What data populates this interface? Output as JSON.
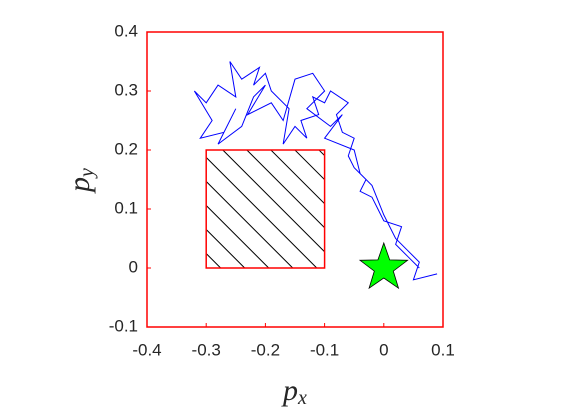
{
  "chart_data": {
    "type": "line",
    "xlabel": {
      "text": "p",
      "subscript": "x"
    },
    "ylabel": {
      "text": "p",
      "subscript": "y"
    },
    "xlim": [
      -0.4,
      0.1
    ],
    "xticks": [
      -0.4,
      -0.3,
      -0.2,
      -0.1,
      0,
      0.1
    ],
    "ylim": [
      -0.1,
      0.4
    ],
    "yticks": [
      -0.1,
      0,
      0.1,
      0.2,
      0.3,
      0.4
    ],
    "axis_color": "#ff0000",
    "series": [
      {
        "color": "#0000ff",
        "x": [
          0.06,
          0.04,
          0.02,
          0.03,
          0.0,
          -0.01,
          -0.02,
          -0.04,
          -0.03,
          -0.05,
          -0.06,
          -0.05,
          -0.07,
          -0.08,
          -0.06,
          -0.09,
          -0.1,
          -0.12,
          -0.11,
          -0.14,
          -0.13,
          -0.15,
          -0.17,
          -0.16,
          -0.19,
          -0.2,
          -0.22,
          -0.21,
          -0.24,
          -0.26,
          -0.25,
          -0.28,
          -0.3,
          -0.32,
          -0.29,
          -0.31,
          -0.27,
          -0.25,
          -0.28,
          -0.24,
          -0.22,
          -0.2,
          -0.23,
          -0.19,
          -0.17,
          -0.15,
          -0.12,
          -0.1,
          -0.13,
          -0.09,
          -0.07,
          -0.1,
          -0.05,
          -0.04,
          -0.02,
          0.0,
          0.02,
          0.04,
          0.06,
          0.05,
          0.09
        ],
        "values": [
          0.0,
          0.02,
          0.04,
          0.07,
          0.08,
          0.1,
          0.12,
          0.13,
          0.15,
          0.17,
          0.19,
          0.22,
          0.23,
          0.26,
          0.28,
          0.3,
          0.28,
          0.29,
          0.26,
          0.25,
          0.22,
          0.24,
          0.21,
          0.27,
          0.3,
          0.33,
          0.31,
          0.34,
          0.32,
          0.35,
          0.29,
          0.31,
          0.28,
          0.3,
          0.25,
          0.22,
          0.23,
          0.27,
          0.21,
          0.24,
          0.29,
          0.31,
          0.26,
          0.28,
          0.25,
          0.32,
          0.33,
          0.3,
          0.27,
          0.24,
          0.26,
          0.22,
          0.2,
          0.16,
          0.14,
          0.09,
          0.05,
          0.03,
          0.01,
          -0.02,
          -0.01
        ]
      }
    ],
    "obstacle": {
      "x": [
        -0.3,
        -0.1
      ],
      "y": [
        0,
        0.2
      ],
      "color": "#ff0000"
    },
    "goal": {
      "x": 0,
      "y": 0,
      "color": "#00ff00"
    }
  }
}
